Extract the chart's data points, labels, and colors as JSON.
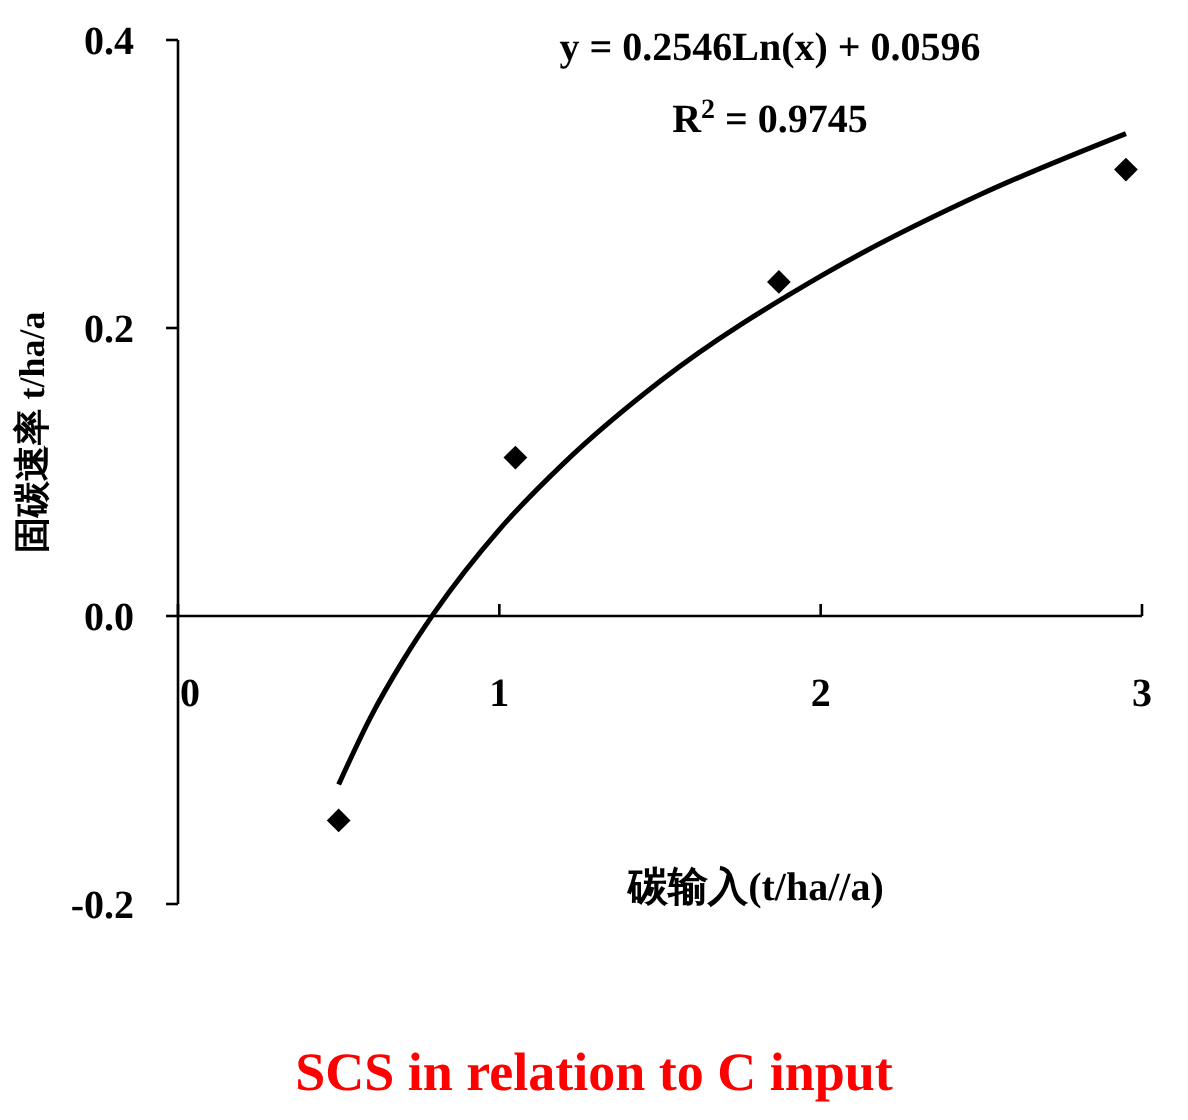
{
  "chart_data": {
    "type": "scatter",
    "title": "SCS in relation to C input",
    "xlabel": "碳输入(t/ha//a)",
    "ylabel": "固碳速率 t/ha/a",
    "annotations": [
      "y = 0.2546Ln(x) + 0.0596",
      "R$^{2}$ = 0.9745"
    ],
    "series": [
      {
        "color": "#000000",
        "marker": "diamond",
        "x": [
          0.5,
          1.05,
          1.87,
          2.95
        ],
        "values": [
          -0.142,
          0.11,
          0.232,
          0.31
        ]
      },
      {
        "type": "line",
        "color": "#000000",
        "marker": "none",
        "x": [
          0.5,
          0.6,
          0.7,
          0.8,
          1,
          1.2,
          1.5,
          2,
          2.5,
          2.95
        ],
        "values": [
          -0.117,
          -0.07,
          -0.031,
          0.003,
          0.06,
          0.106,
          0.163,
          0.236,
          0.293,
          0.335
        ]
      }
    ],
    "xlim": [
      0,
      3
    ],
    "xticks": [
      0,
      1,
      2,
      3
    ],
    "ylim": [
      -0.2,
      0.4
    ],
    "yticks": [
      0.4,
      0.2,
      {
        "value": 0,
        "label": "0.0"
      },
      -0.2
    ],
    "grid": false
  }
}
